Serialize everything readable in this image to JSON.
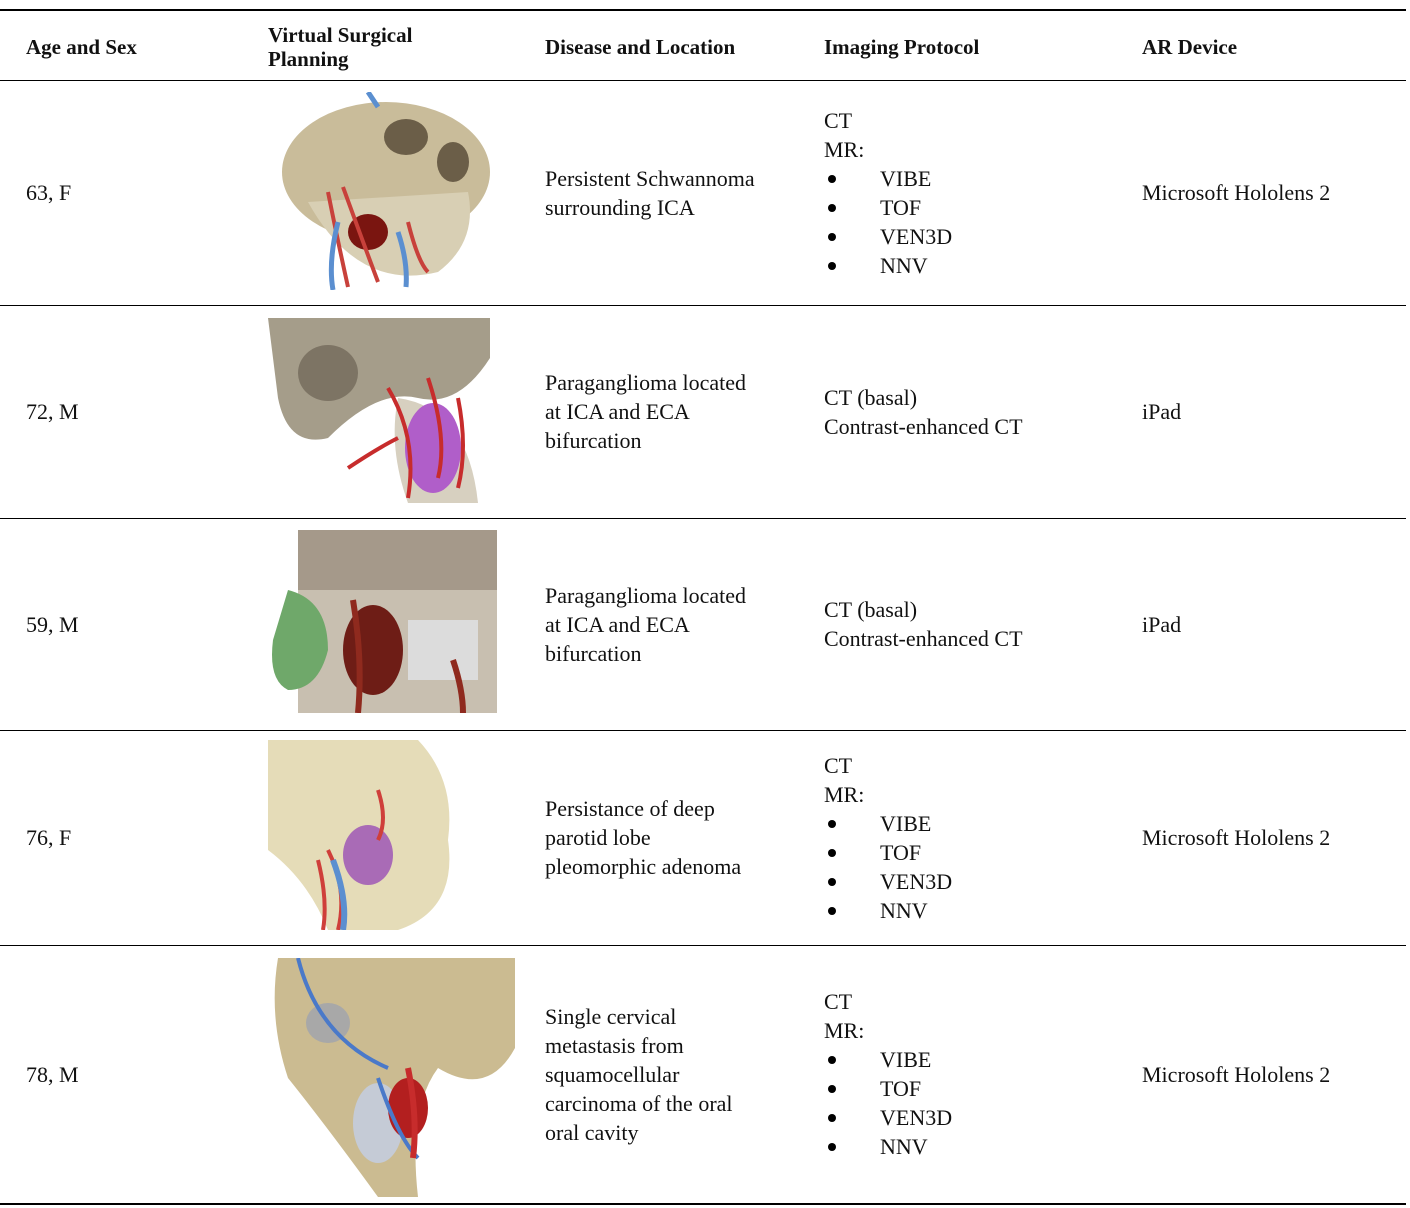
{
  "table": {
    "header": [
      "Age and Sex",
      "Virtual Surgical Planning",
      "Disease and Location",
      "Imaging Protocol",
      "AR Device"
    ],
    "rows": [
      {
        "age_sex": "63, F",
        "disease": [
          "Persistent Schwannoma",
          "surrounding ICA"
        ],
        "imaging": [
          "CT",
          "MR:"
        ],
        "bullets": [
          "VIBE",
          "TOF",
          "VEN3D",
          "NNV"
        ],
        "device": "Microsoft Hololens 2"
      },
      {
        "age_sex": "72, M",
        "disease": [
          "Paraganglioma located",
          "at ICA and ECA",
          "bifurcation"
        ],
        "imaging": [
          "CT (basal)",
          "Contrast-enhanced CT"
        ],
        "bullets": [],
        "device": "iPad"
      },
      {
        "age_sex": "59, M",
        "disease": [
          "Paraganglioma located",
          "at ICA and ECA",
          "bifurcation"
        ],
        "imaging": [
          "CT (basal)",
          "Contrast-enhanced CT"
        ],
        "bullets": [],
        "device": "iPad"
      },
      {
        "age_sex": "76, F",
        "disease": [
          "Persistance of deep",
          "parotid lobe",
          "pleomorphic adenoma"
        ],
        "imaging": [
          "CT",
          "MR:"
        ],
        "bullets": [
          "VIBE",
          "TOF",
          "VEN3D",
          "NNV"
        ],
        "device": "Microsoft Hololens 2"
      },
      {
        "age_sex": "78, M",
        "disease": [
          "Single cervical",
          "metastasis from",
          "squamocellular",
          "carcinoma of the oral",
          "oral cavity"
        ],
        "imaging": [
          "CT",
          "MR:"
        ],
        "bullets": [
          "VIBE",
          "TOF",
          "VEN3D",
          "NNV"
        ],
        "device": "Microsoft Hololens 2"
      }
    ]
  }
}
